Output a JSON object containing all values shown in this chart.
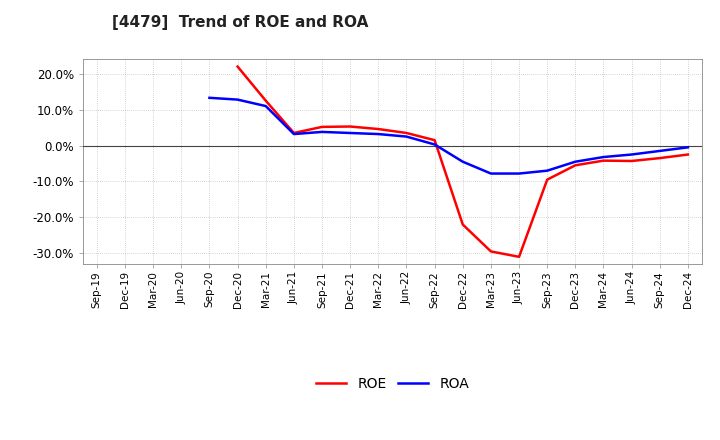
{
  "title": "[4479]  Trend of ROE and ROA",
  "title_fontsize": 11,
  "background_color": "#ffffff",
  "plot_bg_color": "#ffffff",
  "grid_color": "#aaaaaa",
  "roe_color": "#ff0000",
  "roa_color": "#0000ff",
  "line_width": 1.8,
  "xlabels": [
    "Sep-19",
    "Dec-19",
    "Mar-20",
    "Jun-20",
    "Sep-20",
    "Dec-20",
    "Mar-21",
    "Jun-21",
    "Sep-21",
    "Dec-21",
    "Mar-22",
    "Jun-22",
    "Sep-22",
    "Dec-22",
    "Mar-23",
    "Jun-23",
    "Sep-23",
    "Dec-23",
    "Mar-24",
    "Jun-24",
    "Sep-24",
    "Dec-24"
  ],
  "roe_values": [
    null,
    null,
    null,
    null,
    null,
    22.0,
    12.5,
    3.5,
    5.2,
    5.3,
    4.6,
    3.5,
    1.5,
    -22.0,
    -29.5,
    -31.0,
    -9.5,
    -5.5,
    -4.2,
    -4.3,
    -3.5,
    -2.5
  ],
  "roa_values": [
    null,
    null,
    null,
    null,
    13.3,
    12.8,
    11.0,
    3.2,
    3.8,
    3.5,
    3.2,
    2.5,
    0.3,
    -4.5,
    -7.8,
    -7.8,
    -7.0,
    -4.5,
    -3.2,
    -2.5,
    -1.5,
    -0.5
  ],
  "ylim": [
    -33,
    24
  ],
  "yticks": [
    -30.0,
    -20.0,
    -10.0,
    0.0,
    10.0,
    20.0
  ],
  "figsize": [
    7.2,
    4.4
  ],
  "dpi": 100
}
